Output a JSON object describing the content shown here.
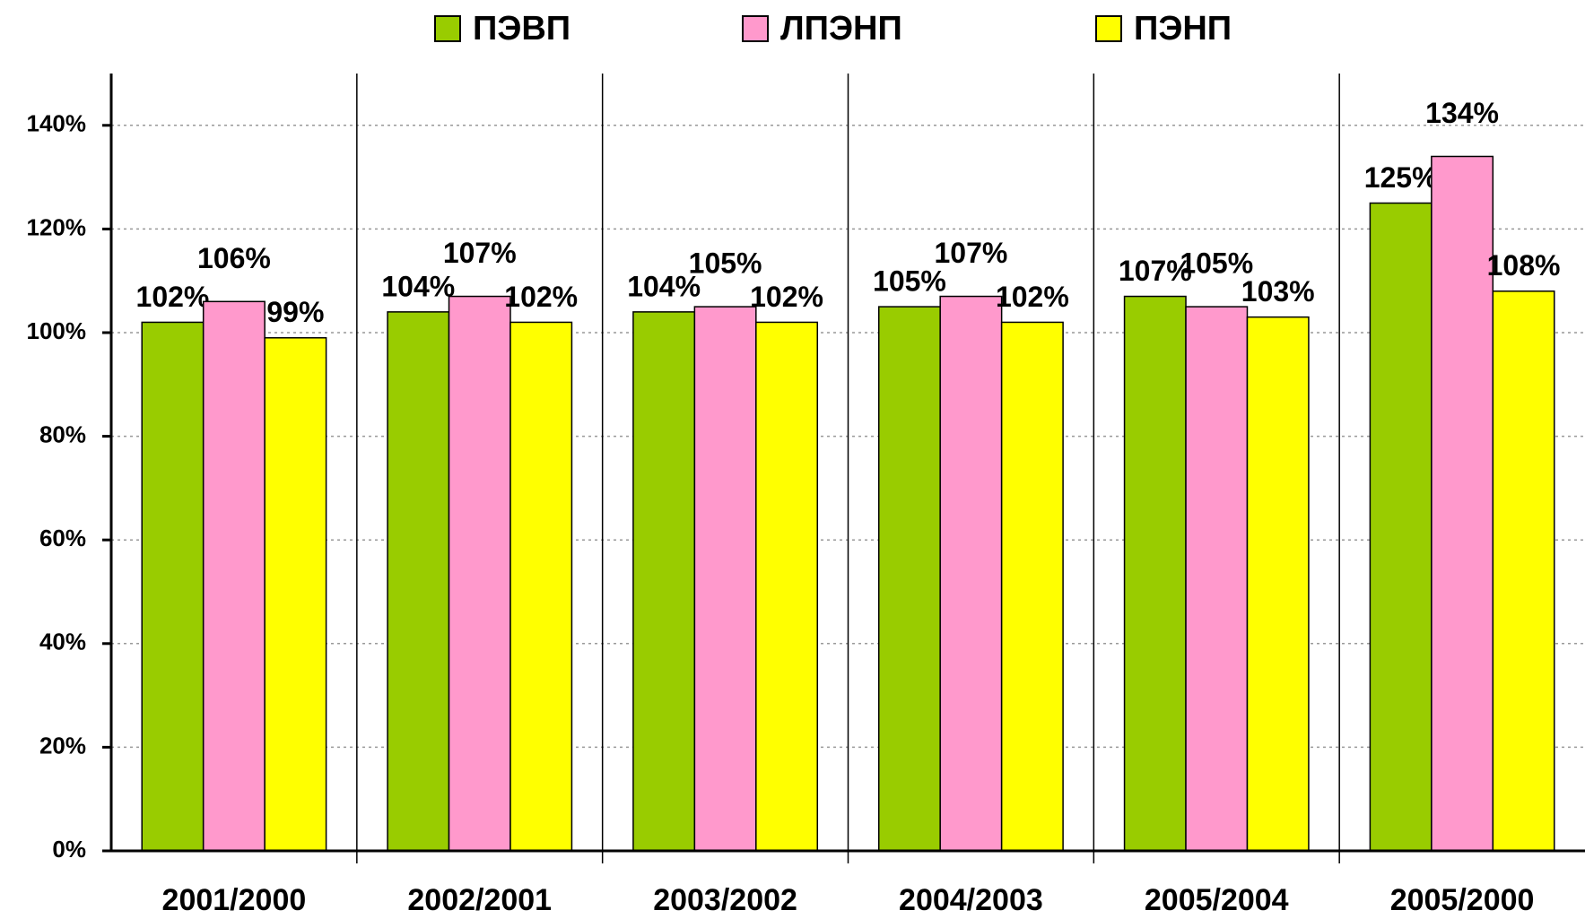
{
  "chart_data": {
    "type": "bar",
    "categories": [
      "2001/2000",
      "2002/2001",
      "2003/2002",
      "2004/2003",
      "2005/2004",
      "2005/2000"
    ],
    "series": [
      {
        "name": "ПЭВП",
        "color": "#99cc00",
        "values": [
          102,
          104,
          104,
          105,
          107,
          125
        ],
        "value_labels": [
          "102%",
          "104%",
          "104%",
          "105%",
          "107%",
          "125%"
        ]
      },
      {
        "name": "ЛПЭНП",
        "color": "#ff99cc",
        "values": [
          106,
          107,
          105,
          107,
          105,
          134
        ],
        "value_labels": [
          "106%",
          "107%",
          "105%",
          "107%",
          "105%",
          "134%"
        ]
      },
      {
        "name": "ПЭНП",
        "color": "#ffff00",
        "values": [
          99,
          102,
          102,
          102,
          103,
          108
        ],
        "value_labels": [
          "99%",
          "102%",
          "102%",
          "102%",
          "103%",
          "108%"
        ]
      }
    ],
    "ylim": [
      0,
      150
    ],
    "yticks": [
      {
        "value": 0,
        "label": "0%"
      },
      {
        "value": 20,
        "label": "20%"
      },
      {
        "value": 40,
        "label": "40%"
      },
      {
        "value": 60,
        "label": "60%"
      },
      {
        "value": 80,
        "label": "80%"
      },
      {
        "value": 100,
        "label": "100%"
      },
      {
        "value": 120,
        "label": "120%"
      },
      {
        "value": 140,
        "label": "140%"
      }
    ],
    "grid": true,
    "legend": "top"
  }
}
